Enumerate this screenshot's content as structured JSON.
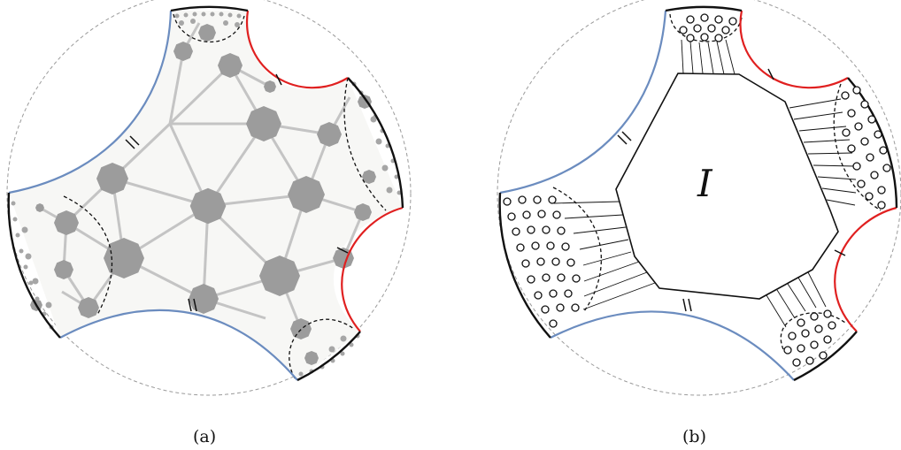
{
  "panels": [
    {
      "id": "a",
      "caption": "(a)"
    },
    {
      "id": "b",
      "caption": "(b)",
      "region_label": "I"
    }
  ],
  "colors": {
    "boundary_blue": "#6b8cbf",
    "boundary_red": "#e02020",
    "boundary_black": "#111111",
    "disk_dashed": "#999999",
    "tile_fill": "#999999",
    "tile_edge": "#c8c8c8"
  }
}
